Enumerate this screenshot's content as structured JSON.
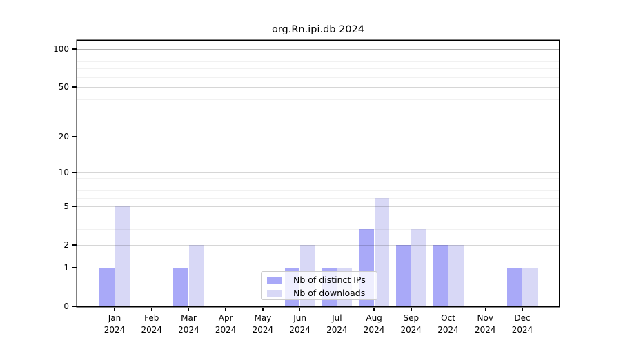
{
  "title": "org.Rn.ipi.db 2024",
  "legend": {
    "items": [
      {
        "label": "Nb of distinct IPs",
        "color": "#a9a9f8"
      },
      {
        "label": "Nb of downloads",
        "color": "#d8d8f6"
      }
    ]
  },
  "chart_data": {
    "type": "bar",
    "title": "org.Rn.ipi.db 2024",
    "categories": [
      "Jan",
      "Feb",
      "Mar",
      "Apr",
      "May",
      "Jun",
      "Jul",
      "Aug",
      "Sep",
      "Oct",
      "Nov",
      "Dec"
    ],
    "category_year": "2024",
    "series": [
      {
        "name": "Nb of distinct IPs",
        "color": "#a9a9f8",
        "values": [
          1,
          0,
          1,
          0,
          0,
          1,
          1,
          3,
          2,
          2,
          0,
          1
        ]
      },
      {
        "name": "Nb of downloads",
        "color": "#d8d8f6",
        "values": [
          5,
          0,
          2,
          0,
          0,
          2,
          1,
          6,
          3,
          2,
          0,
          1
        ]
      }
    ],
    "xlabel": "",
    "ylabel": "",
    "yscale": "log10(value+1)",
    "ytick_labels": [
      0,
      1,
      2,
      5,
      10,
      20,
      50,
      100
    ],
    "grid_major_values": [
      1,
      2,
      5,
      10,
      20,
      50
    ],
    "grid_top_value": 100,
    "grid_minor_values": [
      3,
      4,
      6,
      7,
      8,
      9,
      30,
      40,
      60,
      70,
      80,
      90
    ],
    "ylim": [
      0,
      117
    ],
    "grid": "horizontal",
    "legend_position": "lower center inside"
  }
}
